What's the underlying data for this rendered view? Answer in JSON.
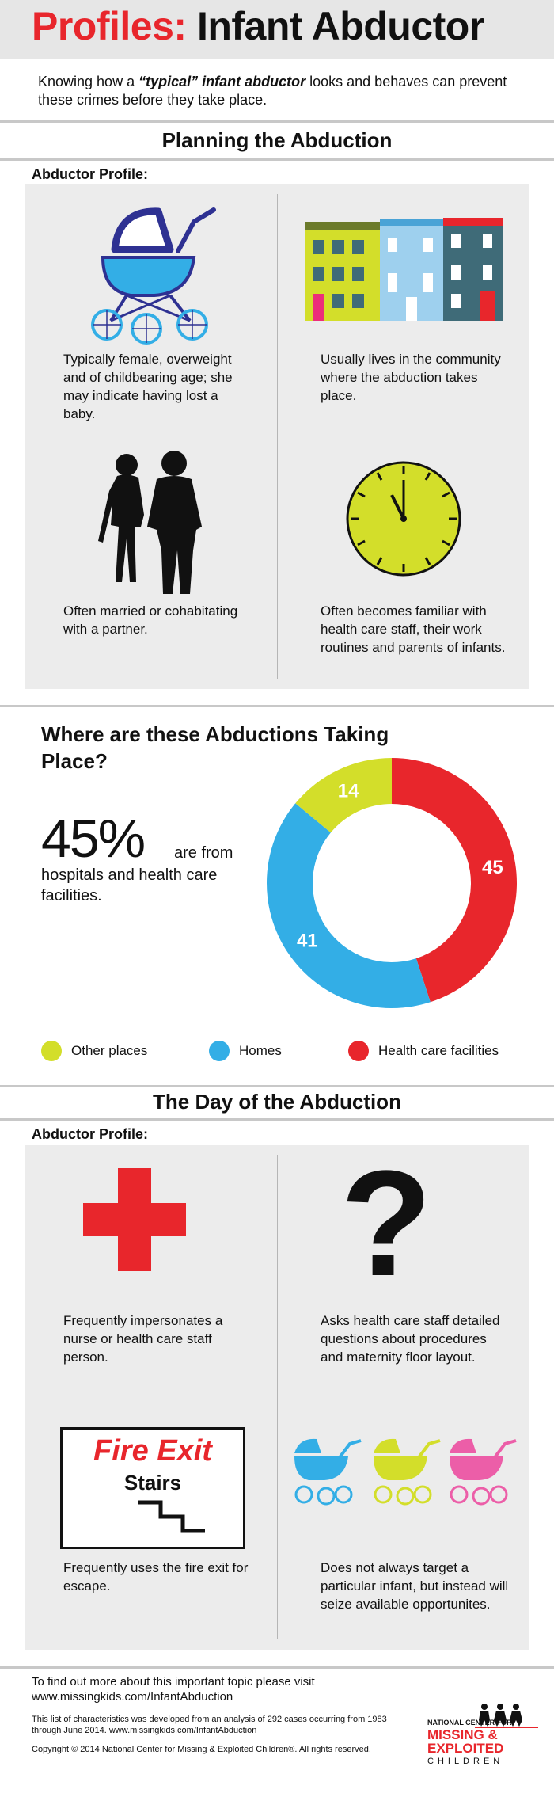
{
  "header": {
    "title_prefix": "Profiles:",
    "title_main": "Infant Abductor"
  },
  "intro": {
    "before": "Knowing how a ",
    "emphasis": "“typical” infant abductor",
    "after": " looks and behaves can prevent these crimes before they take place."
  },
  "planning": {
    "title": "Planning the Abduction",
    "profile_label": "Abductor Profile:",
    "cells": [
      {
        "icon": "stroller-icon",
        "text": "Typically female, overweight and of childbearing age; she may indicate having lost a baby."
      },
      {
        "icon": "houses-icon",
        "text": "Usually lives in the community where the abduction takes place."
      },
      {
        "icon": "couple-silhouette-icon",
        "text": "Often married or cohabitating with a partner."
      },
      {
        "icon": "clock-icon",
        "text": "Often becomes familiar with health care staff, their work routines and parents of infants."
      }
    ]
  },
  "where": {
    "title": "Where are these Abductions Taking Place?",
    "big_stat": "45%",
    "big_stat_tail": "are from",
    "big_stat_text": "hospitals and health care facilities."
  },
  "chart_data": {
    "type": "pie",
    "donut": true,
    "categories": [
      "Health care facilities",
      "Homes",
      "Other places"
    ],
    "values": [
      45,
      41,
      14
    ],
    "colors": [
      "#e8262c",
      "#33aee6",
      "#d3de2a"
    ],
    "legend": [
      "Other places",
      "Homes",
      "Health care facilities"
    ],
    "legend_colors": [
      "#d3de2a",
      "#33aee6",
      "#e8262c"
    ],
    "legend_position": "bottom"
  },
  "day": {
    "title": "The Day of the Abduction",
    "profile_label": "Abductor Profile:",
    "cells": [
      {
        "icon": "red-cross-icon",
        "text": "Frequently impersonates a nurse or health care staff person."
      },
      {
        "icon": "question-mark-icon",
        "text": "Asks health care staff detailed questions about procedures and maternity floor layout."
      },
      {
        "icon": "fire-exit-sign-icon",
        "text": "Frequently uses the fire exit for escape.",
        "sign_title": "Fire Exit",
        "sign_sub": "Stairs"
      },
      {
        "icon": "three-strollers-icon",
        "text": "Does not always target a particular infant, but instead will seize available opportunites."
      }
    ]
  },
  "footer": {
    "more_info": "To find out more about this important topic please visit www.missingkids.com/InfantAbduction",
    "analysis": "This list of characteristics was developed from an analysis of 292 cases occurring from 1983 through June 2014. www.missingkids.com/InfantAbduction",
    "copyright": "Copyright © 2014 National Center for Missing & Exploited Children®. All rights reserved.",
    "logo_line1": "NATIONAL CENTER FOR",
    "logo_line2": "MISSING &",
    "logo_line3": "EXPLOITED",
    "logo_line4": "CHILDREN"
  }
}
